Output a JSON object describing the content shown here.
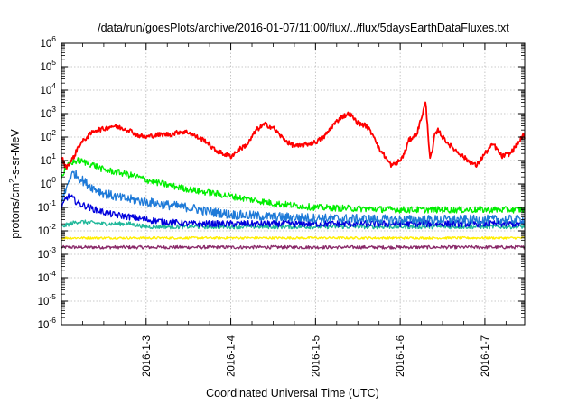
{
  "chart_data": {
    "type": "line",
    "title": "/data/run/goesPlots/archive/2016-01-07/11:00/flux/../flux/5daysEarthDataFluxes.txt",
    "xlabel": "Coordinated Universal Time (UTC)",
    "ylabel_parts": {
      "a": "protons/cm",
      "b": "2",
      "c": "-s-sr-MeV"
    },
    "yscale": "log",
    "ylim": [
      1e-06,
      1000000.0
    ],
    "xlim": [
      2.0,
      7.47
    ],
    "grid": true,
    "legend": "none",
    "y_ticks": [
      {
        "v": -6,
        "base": "10",
        "exp": "-6"
      },
      {
        "v": -5,
        "base": "10",
        "exp": "-5"
      },
      {
        "v": -4,
        "base": "10",
        "exp": "-4"
      },
      {
        "v": -3,
        "base": "10",
        "exp": "-3"
      },
      {
        "v": -2,
        "base": "10",
        "exp": "-2"
      },
      {
        "v": -1,
        "base": "10",
        "exp": "-1"
      },
      {
        "v": 0,
        "base": "10",
        "exp": "0"
      },
      {
        "v": 1,
        "base": "10",
        "exp": "1"
      },
      {
        "v": 2,
        "base": "10",
        "exp": "2"
      },
      {
        "v": 3,
        "base": "10",
        "exp": "3"
      },
      {
        "v": 4,
        "base": "10",
        "exp": "4"
      },
      {
        "v": 5,
        "base": "10",
        "exp": "5"
      },
      {
        "v": 6,
        "base": "10",
        "exp": "6"
      }
    ],
    "x_ticks": [
      {
        "v": 3,
        "label": "2016-1-3"
      },
      {
        "v": 4,
        "label": "2016-1-4"
      },
      {
        "v": 5,
        "label": "2016-1-5"
      },
      {
        "v": 6,
        "label": "2016-1-6"
      },
      {
        "v": 7,
        "label": "2016-1-7"
      }
    ],
    "series": [
      {
        "color": "#ff0000",
        "noise": 0.1,
        "x": [
          2.0,
          2.05,
          2.1,
          2.15,
          2.2,
          2.3,
          2.4,
          2.5,
          2.6,
          2.7,
          2.8,
          2.9,
          3.0,
          3.1,
          3.2,
          3.3,
          3.4,
          3.5,
          3.6,
          3.7,
          3.8,
          3.9,
          4.0,
          4.1,
          4.2,
          4.3,
          4.4,
          4.5,
          4.6,
          4.7,
          4.8,
          4.9,
          5.0,
          5.1,
          5.2,
          5.3,
          5.4,
          5.5,
          5.6,
          5.7,
          5.75,
          5.8,
          5.85,
          5.9,
          6.0,
          6.05,
          6.1,
          6.2,
          6.3,
          6.35,
          6.38,
          6.4,
          6.45,
          6.5,
          6.6,
          6.7,
          6.8,
          6.9,
          7.0,
          7.1,
          7.2,
          7.3,
          7.4,
          7.45,
          7.47
        ],
        "y": [
          15,
          5,
          8,
          15,
          40,
          100,
          200,
          220,
          300,
          250,
          200,
          120,
          100,
          120,
          130,
          130,
          170,
          160,
          100,
          70,
          30,
          20,
          15,
          30,
          50,
          200,
          350,
          250,
          100,
          50,
          40,
          50,
          60,
          100,
          300,
          700,
          1000,
          400,
          300,
          100,
          30,
          20,
          10,
          6,
          10,
          20,
          70,
          150,
          3000,
          15,
          20,
          100,
          200,
          100,
          40,
          20,
          10,
          6,
          20,
          50,
          15,
          20,
          60,
          120,
          80
        ]
      },
      {
        "color": "#00ee00",
        "noise": 0.14,
        "x": [
          2.0,
          2.1,
          2.2,
          2.3,
          2.4,
          2.5,
          2.7,
          2.9,
          3.0,
          3.2,
          3.4,
          3.6,
          3.8,
          4.0,
          4.5,
          5.0,
          6.0,
          7.0,
          7.47
        ],
        "y": [
          2,
          8,
          10,
          8,
          6,
          4,
          3,
          2,
          1.5,
          1,
          0.7,
          0.5,
          0.4,
          0.3,
          0.15,
          0.1,
          0.08,
          0.08,
          0.08
        ]
      },
      {
        "color": "#1e7ad8",
        "noise": 0.2,
        "x": [
          2.0,
          2.05,
          2.1,
          2.15,
          2.2,
          2.3,
          2.4,
          2.5,
          2.7,
          2.9,
          3.1,
          3.3,
          3.5,
          3.7,
          4.0,
          4.5,
          5.0,
          6.0,
          7.0,
          7.47
        ],
        "y": [
          0.2,
          0.5,
          2,
          3,
          2,
          1,
          0.6,
          0.4,
          0.25,
          0.2,
          0.15,
          0.12,
          0.1,
          0.07,
          0.05,
          0.04,
          0.035,
          0.03,
          0.03,
          0.03
        ]
      },
      {
        "color": "#0000dd",
        "noise": 0.14,
        "x": [
          2.0,
          2.05,
          2.1,
          2.2,
          2.4,
          2.6,
          2.8,
          3.0,
          3.2,
          3.5,
          4.0,
          4.5,
          5.0,
          6.0,
          7.0,
          7.47
        ],
        "y": [
          0.08,
          0.25,
          0.3,
          0.15,
          0.08,
          0.05,
          0.04,
          0.03,
          0.025,
          0.02,
          0.02,
          0.02,
          0.02,
          0.02,
          0.02,
          0.02
        ]
      },
      {
        "color": "#20b89a",
        "noise": 0.09,
        "x": [
          2.0,
          2.1,
          2.2,
          2.5,
          2.8,
          3.0,
          3.5,
          4.0,
          5.0,
          6.0,
          7.0,
          7.47
        ],
        "y": [
          0.015,
          0.02,
          0.025,
          0.02,
          0.02,
          0.015,
          0.015,
          0.015,
          0.015,
          0.015,
          0.015,
          0.015
        ]
      },
      {
        "color": "#ffee00",
        "noise": 0.05,
        "x": [
          2.0,
          3.0,
          4.0,
          5.0,
          6.0,
          7.0,
          7.47
        ],
        "y": [
          0.005,
          0.005,
          0.005,
          0.005,
          0.005,
          0.005,
          0.005
        ]
      },
      {
        "color": "#8a2a6a",
        "noise": 0.07,
        "x": [
          2.0,
          3.0,
          4.0,
          5.0,
          6.0,
          7.0,
          7.47
        ],
        "y": [
          0.002,
          0.002,
          0.002,
          0.002,
          0.002,
          0.002,
          0.002
        ]
      }
    ]
  }
}
